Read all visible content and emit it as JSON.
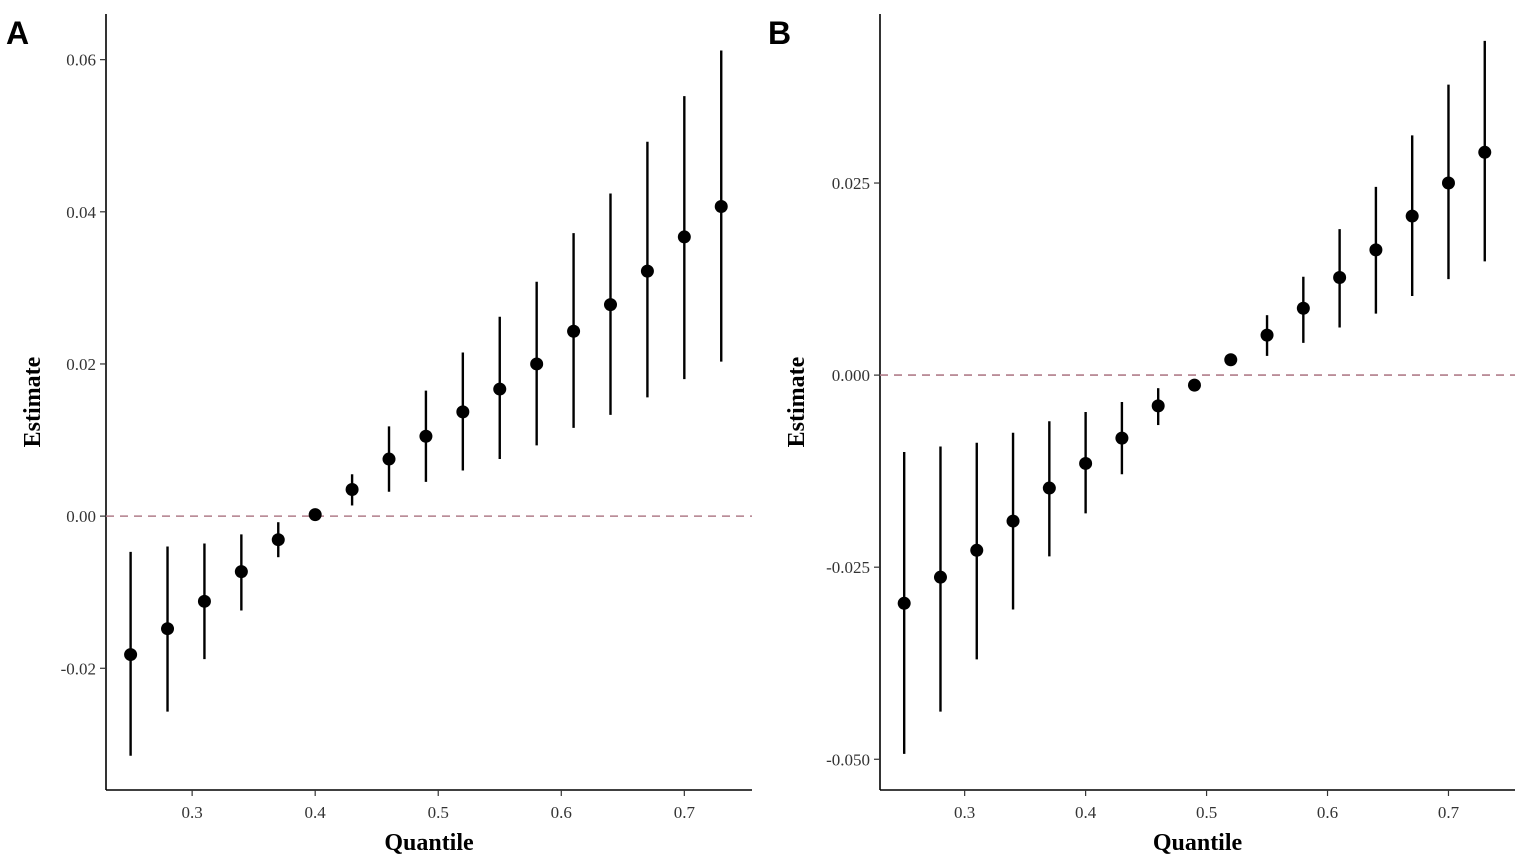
{
  "chart_data": [
    {
      "panel": "A",
      "type": "scatter",
      "xlabel": "Quantile",
      "ylabel": "Estimate",
      "xlim": [
        0.23,
        0.755
      ],
      "ylim": [
        -0.036,
        0.066
      ],
      "xticks": [
        0.3,
        0.4,
        0.5,
        0.6,
        0.7
      ],
      "xtick_labels": [
        "0.3",
        "0.4",
        "0.5",
        "0.6",
        "0.7"
      ],
      "yticks": [
        -0.02,
        0.0,
        0.02,
        0.04,
        0.06
      ],
      "ytick_labels": [
        "-0.02",
        "0.00",
        "0.02",
        "0.04",
        "0.06"
      ],
      "reference_line": 0.0,
      "reference_color": "#b07d8a",
      "points": [
        {
          "x": 0.25,
          "y": -0.0182,
          "lo": -0.0315,
          "hi": -0.0047
        },
        {
          "x": 0.28,
          "y": -0.0148,
          "lo": -0.0257,
          "hi": -0.004
        },
        {
          "x": 0.31,
          "y": -0.0112,
          "lo": -0.0188,
          "hi": -0.0036
        },
        {
          "x": 0.34,
          "y": -0.0073,
          "lo": -0.0124,
          "hi": -0.0024
        },
        {
          "x": 0.37,
          "y": -0.0031,
          "lo": -0.0054,
          "hi": -0.0008
        },
        {
          "x": 0.4,
          "y": 0.0002,
          "lo": -0.0001,
          "hi": 0.0004
        },
        {
          "x": 0.43,
          "y": 0.0035,
          "lo": 0.0014,
          "hi": 0.0055
        },
        {
          "x": 0.46,
          "y": 0.0075,
          "lo": 0.0032,
          "hi": 0.0118
        },
        {
          "x": 0.49,
          "y": 0.0105,
          "lo": 0.0045,
          "hi": 0.0165
        },
        {
          "x": 0.52,
          "y": 0.0137,
          "lo": 0.006,
          "hi": 0.0215
        },
        {
          "x": 0.55,
          "y": 0.0167,
          "lo": 0.0075,
          "hi": 0.0262
        },
        {
          "x": 0.58,
          "y": 0.02,
          "lo": 0.0093,
          "hi": 0.0308
        },
        {
          "x": 0.61,
          "y": 0.0243,
          "lo": 0.0116,
          "hi": 0.0372
        },
        {
          "x": 0.64,
          "y": 0.0278,
          "lo": 0.0133,
          "hi": 0.0424
        },
        {
          "x": 0.67,
          "y": 0.0322,
          "lo": 0.0156,
          "hi": 0.0492
        },
        {
          "x": 0.7,
          "y": 0.0367,
          "lo": 0.018,
          "hi": 0.0552
        },
        {
          "x": 0.73,
          "y": 0.0407,
          "lo": 0.0203,
          "hi": 0.0612
        }
      ]
    },
    {
      "panel": "B",
      "type": "scatter",
      "xlabel": "Quantile",
      "ylabel": "Estimate",
      "xlim": [
        0.23,
        0.755
      ],
      "ylim": [
        -0.054,
        0.047
      ],
      "xticks": [
        0.3,
        0.4,
        0.5,
        0.6,
        0.7
      ],
      "xtick_labels": [
        "0.3",
        "0.4",
        "0.5",
        "0.6",
        "0.7"
      ],
      "yticks": [
        -0.05,
        -0.025,
        0.0,
        0.025
      ],
      "ytick_labels": [
        "-0.050",
        "-0.025",
        "0.000",
        "0.025"
      ],
      "reference_line": 0.0,
      "reference_color": "#b07d8a",
      "points": [
        {
          "x": 0.25,
          "y": -0.0297,
          "lo": -0.0493,
          "hi": -0.01
        },
        {
          "x": 0.28,
          "y": -0.0263,
          "lo": -0.0438,
          "hi": -0.0093
        },
        {
          "x": 0.31,
          "y": -0.0228,
          "lo": -0.037,
          "hi": -0.0088
        },
        {
          "x": 0.34,
          "y": -0.019,
          "lo": -0.0305,
          "hi": -0.0075
        },
        {
          "x": 0.37,
          "y": -0.0147,
          "lo": -0.0236,
          "hi": -0.006
        },
        {
          "x": 0.4,
          "y": -0.0115,
          "lo": -0.018,
          "hi": -0.0048
        },
        {
          "x": 0.43,
          "y": -0.0082,
          "lo": -0.0129,
          "hi": -0.0035
        },
        {
          "x": 0.46,
          "y": -0.004,
          "lo": -0.0065,
          "hi": -0.0017
        },
        {
          "x": 0.49,
          "y": -0.0013,
          "lo": -0.002,
          "hi": -0.0007
        },
        {
          "x": 0.52,
          "y": 0.002,
          "lo": 0.0012,
          "hi": 0.0028
        },
        {
          "x": 0.55,
          "y": 0.0052,
          "lo": 0.0025,
          "hi": 0.0078
        },
        {
          "x": 0.58,
          "y": 0.0087,
          "lo": 0.0042,
          "hi": 0.0128
        },
        {
          "x": 0.61,
          "y": 0.0127,
          "lo": 0.0062,
          "hi": 0.019
        },
        {
          "x": 0.64,
          "y": 0.0163,
          "lo": 0.008,
          "hi": 0.0245
        },
        {
          "x": 0.67,
          "y": 0.0207,
          "lo": 0.0103,
          "hi": 0.0312
        },
        {
          "x": 0.7,
          "y": 0.025,
          "lo": 0.0125,
          "hi": 0.0378
        },
        {
          "x": 0.73,
          "y": 0.029,
          "lo": 0.0148,
          "hi": 0.0435
        }
      ]
    }
  ]
}
